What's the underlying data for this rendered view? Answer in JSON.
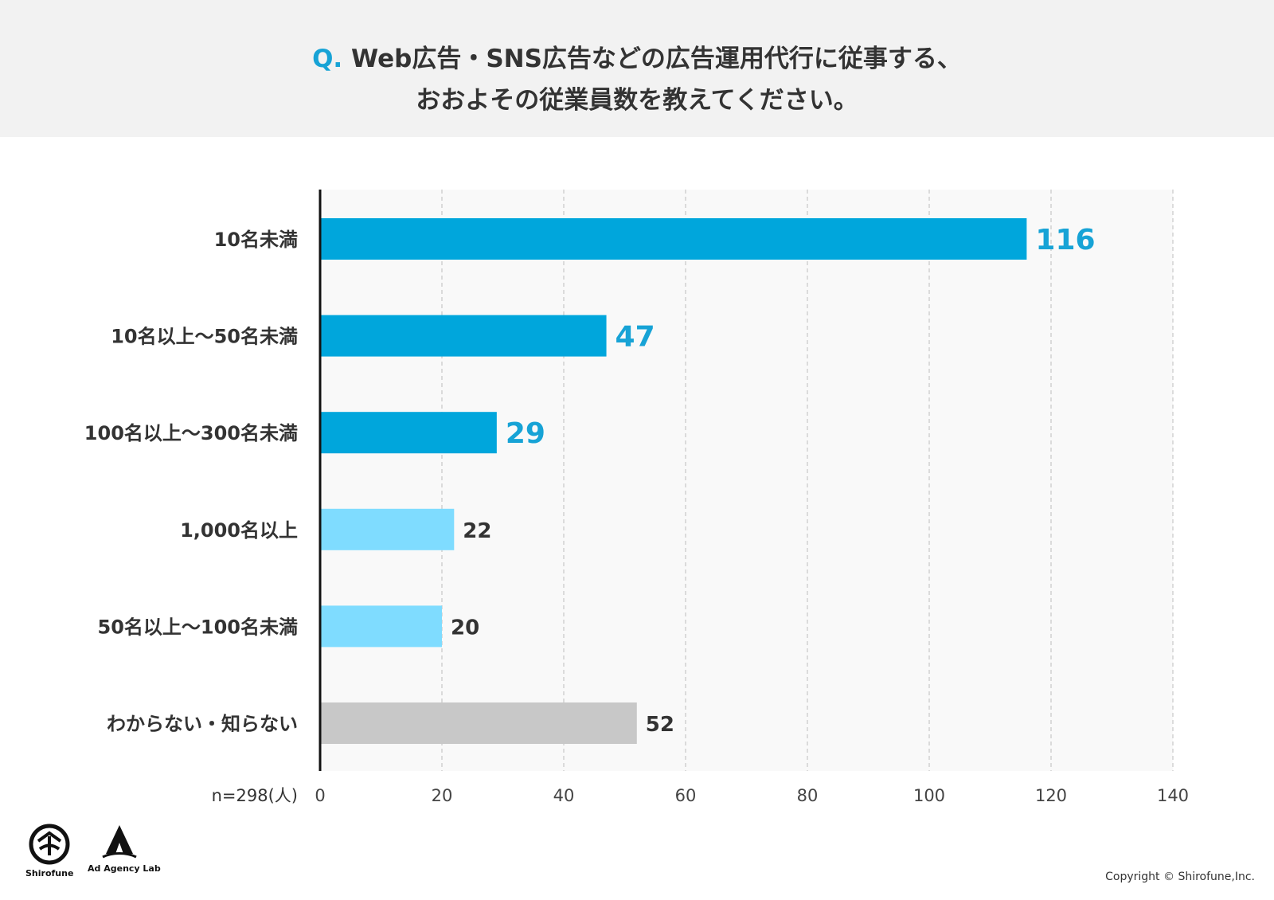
{
  "header": {
    "q_prefix": "Q.",
    "line1": " Web広告・SNS広告などの広告運用代行に従事する、",
    "line2": "おおよその従業員数を教えてください。"
  },
  "colors": {
    "header_bg": "#f2f2f2",
    "accent": "#17a3d6",
    "bar_dark": "#00a6dc",
    "bar_light": "#7fdcff",
    "bar_gray": "#c8c8c8",
    "plot_bg": "#f9f9f9"
  },
  "chart_data": {
    "type": "bar",
    "orientation": "horizontal",
    "categories": [
      "10名未満",
      "10名以上〜50名未満",
      "100名以上〜300名未満",
      "1,000名以上",
      "50名以上〜100名未満",
      "わからない・知らない"
    ],
    "values": [
      116,
      47,
      29,
      22,
      20,
      52
    ],
    "bar_colors": [
      "#00a6dc",
      "#00a6dc",
      "#00a6dc",
      "#7fdcff",
      "#7fdcff",
      "#c8c8c8"
    ],
    "highlighted": [
      true,
      true,
      true,
      false,
      false,
      false
    ],
    "xlim": [
      0,
      140
    ],
    "xticks": [
      0,
      20,
      40,
      60,
      80,
      100,
      120,
      140
    ],
    "n_label": "n=298(人)",
    "grid": "vertical dashed",
    "data_labels": true
  },
  "footer": {
    "logo1_text": "Shirofune",
    "logo2_text": "Ad Agency Lab",
    "copyright": "Copyright © Shirofune,Inc."
  }
}
